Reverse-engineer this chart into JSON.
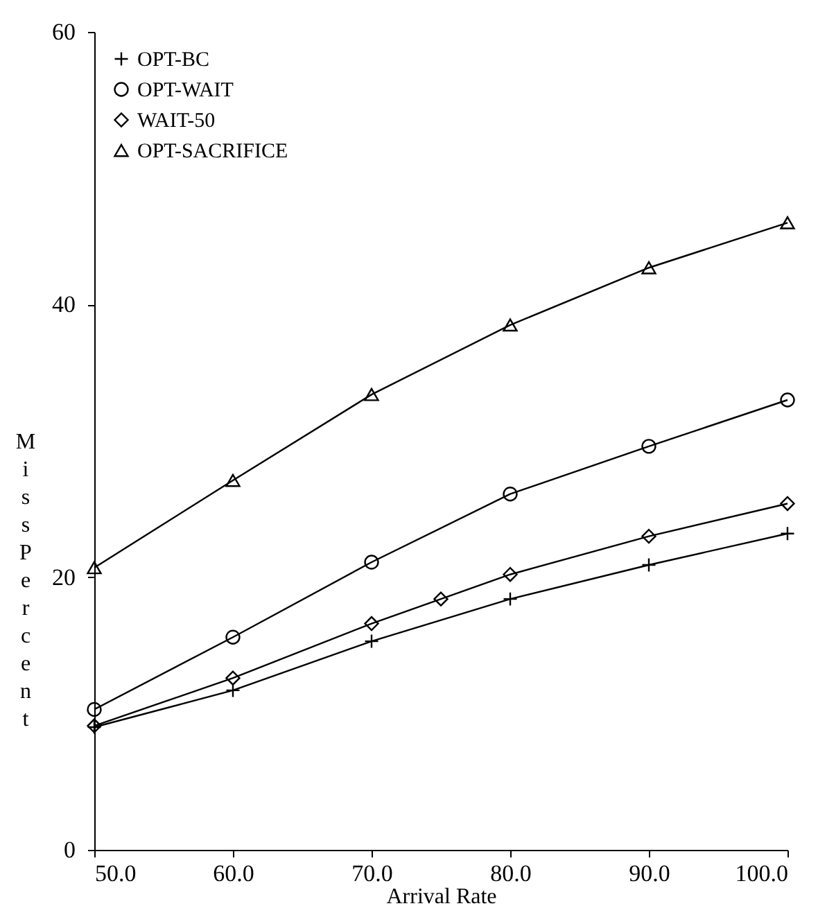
{
  "chart_data": {
    "type": "line",
    "xlabel": "Arrival Rate",
    "ylabel": "Miss Percent",
    "legend": "top left",
    "grid": false,
    "xlim": [
      50,
      100
    ],
    "xticks": [
      {
        "value": 50,
        "label": "50.0"
      },
      {
        "value": 60,
        "label": "60.0"
      },
      {
        "value": 70,
        "label": "70.0"
      },
      {
        "value": 80,
        "label": "80.0"
      },
      {
        "value": 90,
        "label": "90.0"
      },
      {
        "value": 100,
        "label": "100.0"
      }
    ],
    "ylim": [
      0,
      60
    ],
    "yticks": [
      0,
      20,
      40,
      60
    ],
    "line_style": "solid",
    "series": [
      {
        "name": "OPT-BC",
        "color": "#000000",
        "marker": "cross",
        "x": [
          50,
          60,
          70,
          80,
          90,
          100
        ],
        "values": [
          9.0,
          11.7,
          15.3,
          18.4,
          20.9,
          23.2
        ]
      },
      {
        "name": "OPT-WAIT",
        "color": "#000000",
        "marker": "circle",
        "x": [
          50,
          60,
          70,
          80,
          90,
          100
        ],
        "values": [
          10.3,
          15.6,
          21.1,
          26.1,
          29.6,
          33.0
        ]
      },
      {
        "name": "WAIT-50",
        "color": "#000000",
        "marker": "diamond",
        "x": [
          50,
          60,
          70,
          75,
          80,
          90,
          100
        ],
        "values": [
          9.1,
          12.6,
          16.6,
          18.4,
          20.2,
          23.0,
          25.4
        ]
      },
      {
        "name": "OPT-SACRIFICE",
        "color": "#000000",
        "marker": "triangle",
        "x": [
          50,
          60,
          70,
          80,
          90,
          100
        ],
        "values": [
          20.7,
          27.1,
          33.4,
          38.5,
          42.7,
          46.0
        ]
      }
    ]
  }
}
